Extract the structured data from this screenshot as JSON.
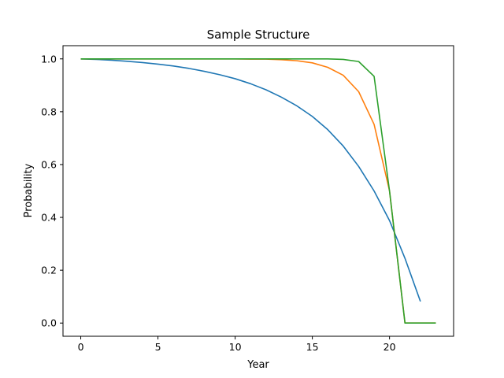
{
  "chart_data": {
    "type": "line",
    "title": "Sample Structure",
    "xlabel": "Year",
    "ylabel": "Probability",
    "xlim": [
      -1.15,
      24.15
    ],
    "ylim": [
      -0.05,
      1.05
    ],
    "x_ticks": [
      0,
      5,
      10,
      15,
      20
    ],
    "y_ticks": [
      0.0,
      0.2,
      0.4,
      0.6,
      0.8,
      1.0
    ],
    "x_tick_labels": [
      "0",
      "5",
      "10",
      "15",
      "20"
    ],
    "y_tick_labels": [
      "0.0",
      "0.2",
      "0.4",
      "0.6",
      "0.8",
      "1.0"
    ],
    "grid": false,
    "legend": "none",
    "x": [
      0,
      1,
      2,
      3,
      4,
      5,
      6,
      7,
      8,
      9,
      10,
      11,
      12,
      13,
      14,
      15,
      16,
      17,
      18,
      19,
      20,
      21,
      22,
      23
    ],
    "series": [
      {
        "color": "#1f77b4",
        "values": [
          1.0,
          0.998,
          0.995,
          0.991,
          0.986,
          0.98,
          0.973,
          0.964,
          0.953,
          0.94,
          0.925,
          0.906,
          0.883,
          0.855,
          0.822,
          0.782,
          0.732,
          0.67,
          0.593,
          0.5,
          0.388,
          0.245,
          0.082,
          null
        ]
      },
      {
        "color": "#ff7f0e",
        "values": [
          1.0,
          1.0,
          1.0,
          1.0,
          1.0,
          1.0,
          1.0,
          1.0,
          1.0,
          1.0,
          1.0,
          0.999,
          0.999,
          0.997,
          0.993,
          0.985,
          0.968,
          0.938,
          0.876,
          0.752,
          0.5,
          0.0,
          0.0,
          0.0
        ]
      },
      {
        "color": "#2ca02c",
        "values": [
          1.0,
          1.0,
          1.0,
          1.0,
          1.0,
          1.0,
          1.0,
          1.0,
          1.0,
          1.0,
          1.0,
          1.0,
          1.0,
          1.0,
          1.0,
          1.0,
          1.0,
          0.998,
          0.99,
          0.934,
          0.5,
          0.0,
          0.0,
          0.0
        ]
      }
    ]
  }
}
